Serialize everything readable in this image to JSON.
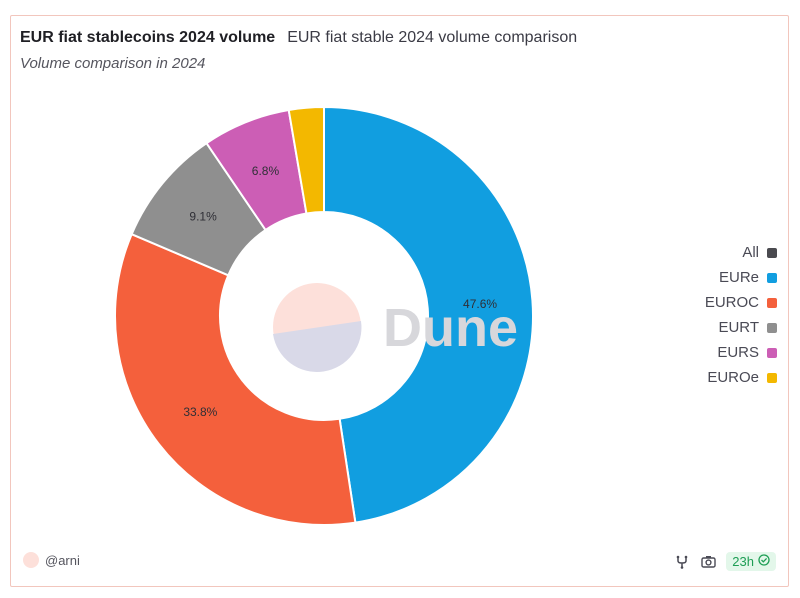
{
  "header": {
    "title": "EUR fiat stablecoins 2024 volume",
    "title_secondary": "EUR fiat stable 2024 volume comparison",
    "subtitle": "Volume comparison in 2024"
  },
  "chart_data": {
    "type": "pie",
    "donut": true,
    "categories": [
      "EURe",
      "EUROC",
      "EURT",
      "EURS",
      "EUROe"
    ],
    "values": [
      47.6,
      33.8,
      9.1,
      6.8,
      2.7
    ],
    "data_labels": [
      "47.6%",
      "33.8%",
      "9.1%",
      "6.8%",
      ""
    ],
    "colors": [
      "#119ee0",
      "#f4603c",
      "#8f8f8f",
      "#cc5eb5",
      "#f3b800"
    ],
    "legend_position": "right",
    "title": "EUR fiat stablecoins 2024 volume",
    "subtitle": "Volume comparison in 2024"
  },
  "legend": {
    "items": [
      {
        "label": "All",
        "color": "#4a4a4f"
      },
      {
        "label": "EURe",
        "color": "#119ee0"
      },
      {
        "label": "EUROC",
        "color": "#f4603c"
      },
      {
        "label": "EURT",
        "color": "#8f8f8f"
      },
      {
        "label": "EURS",
        "color": "#cc5eb5"
      },
      {
        "label": "EUROe",
        "color": "#f3b800"
      }
    ]
  },
  "watermark": {
    "text": "Dune"
  },
  "footer": {
    "author": "@arni",
    "refresh": "23h"
  },
  "icons": {
    "fork": "fork-icon",
    "camera": "camera-icon",
    "check": "check-circle-icon"
  }
}
